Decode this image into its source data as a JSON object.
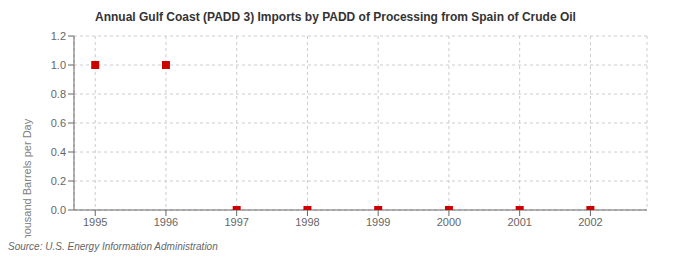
{
  "chart_data": {
    "type": "scatter",
    "title": "Annual Gulf Coast (PADD 3) Imports by PADD of Processing from Spain of Crude Oil",
    "y_label": "Thousand Barrels per Day",
    "annotations": [
      "Source: U.S. Energy Information Administration"
    ],
    "x": [
      1995,
      1996,
      1997,
      1998,
      1999,
      2000,
      2001,
      2002
    ],
    "values": [
      1.0,
      1.0,
      0.0,
      0.0,
      0.0,
      0.0,
      0.0,
      0.0
    ],
    "color": "#cc0000",
    "marker": "square",
    "xlim": [
      1994.7,
      2002.8
    ],
    "xticks": [
      1995,
      1996,
      1997,
      1998,
      1999,
      2000,
      2001,
      2002
    ],
    "ylim": [
      0.0,
      1.2
    ],
    "yticks": [
      {
        "value": 0.0,
        "label": "0.0"
      },
      {
        "value": 0.2,
        "label": "0.2"
      },
      {
        "value": 0.4,
        "label": "0.4"
      },
      {
        "value": 0.6,
        "label": "0.6"
      },
      {
        "value": 0.8,
        "label": "0.8"
      },
      {
        "value": 1.0,
        "label": "1.0"
      },
      {
        "value": 1.2,
        "label": "1.2"
      }
    ],
    "grid": true
  }
}
